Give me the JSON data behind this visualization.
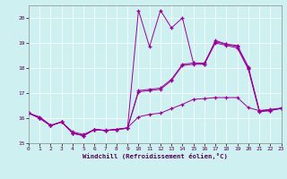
{
  "xlabel": "Windchill (Refroidissement éolien,°C)",
  "bg_color": "#cff0f0",
  "line_color": "#990099",
  "xlim": [
    0,
    23
  ],
  "ylim": [
    15,
    20.5
  ],
  "yticks": [
    15,
    16,
    17,
    18,
    19,
    20
  ],
  "xticks": [
    0,
    1,
    2,
    3,
    4,
    5,
    6,
    7,
    8,
    9,
    10,
    11,
    12,
    13,
    14,
    15,
    16,
    17,
    18,
    19,
    20,
    21,
    22,
    23
  ],
  "series1_x": [
    0,
    1,
    2,
    3,
    4,
    5,
    6,
    7,
    8,
    9,
    10,
    11,
    12,
    13,
    14,
    15,
    16,
    17,
    18,
    19,
    20,
    21,
    22,
    23
  ],
  "series1_y": [
    16.2,
    16.0,
    15.7,
    15.85,
    15.4,
    15.3,
    15.55,
    15.5,
    15.55,
    15.6,
    20.3,
    18.85,
    20.3,
    19.6,
    20.0,
    18.2,
    18.15,
    19.1,
    18.95,
    18.9,
    18.05,
    16.3,
    16.3,
    16.4
  ],
  "series2_x": [
    0,
    1,
    2,
    3,
    4,
    5,
    6,
    7,
    8,
    9,
    10,
    11,
    12,
    13,
    14,
    15,
    16,
    17,
    18,
    19,
    20,
    21,
    22,
    23
  ],
  "series2_y": [
    16.2,
    16.0,
    15.7,
    15.85,
    15.4,
    15.3,
    15.55,
    15.5,
    15.55,
    15.6,
    17.1,
    17.15,
    17.2,
    17.55,
    18.15,
    18.2,
    18.2,
    19.05,
    18.95,
    18.85,
    18.0,
    16.3,
    16.35,
    16.4
  ],
  "series3_x": [
    0,
    1,
    2,
    3,
    4,
    5,
    6,
    7,
    8,
    9,
    10,
    11,
    12,
    13,
    14,
    15,
    16,
    17,
    18,
    19,
    20,
    21,
    22,
    23
  ],
  "series3_y": [
    16.2,
    16.0,
    15.7,
    15.85,
    15.4,
    15.3,
    15.55,
    15.5,
    15.55,
    15.6,
    17.05,
    17.1,
    17.15,
    17.5,
    18.1,
    18.15,
    18.15,
    19.0,
    18.9,
    18.8,
    17.95,
    16.25,
    16.3,
    16.4
  ],
  "series4_x": [
    0,
    1,
    2,
    3,
    4,
    5,
    6,
    7,
    8,
    9,
    10,
    11,
    12,
    13,
    14,
    15,
    16,
    17,
    18,
    19,
    20,
    21,
    22,
    23
  ],
  "series4_y": [
    16.2,
    16.05,
    15.72,
    15.85,
    15.45,
    15.35,
    15.55,
    15.52,
    15.55,
    15.62,
    16.05,
    16.15,
    16.2,
    16.38,
    16.55,
    16.75,
    16.78,
    16.82,
    16.82,
    16.82,
    16.42,
    16.3,
    16.32,
    16.38
  ]
}
